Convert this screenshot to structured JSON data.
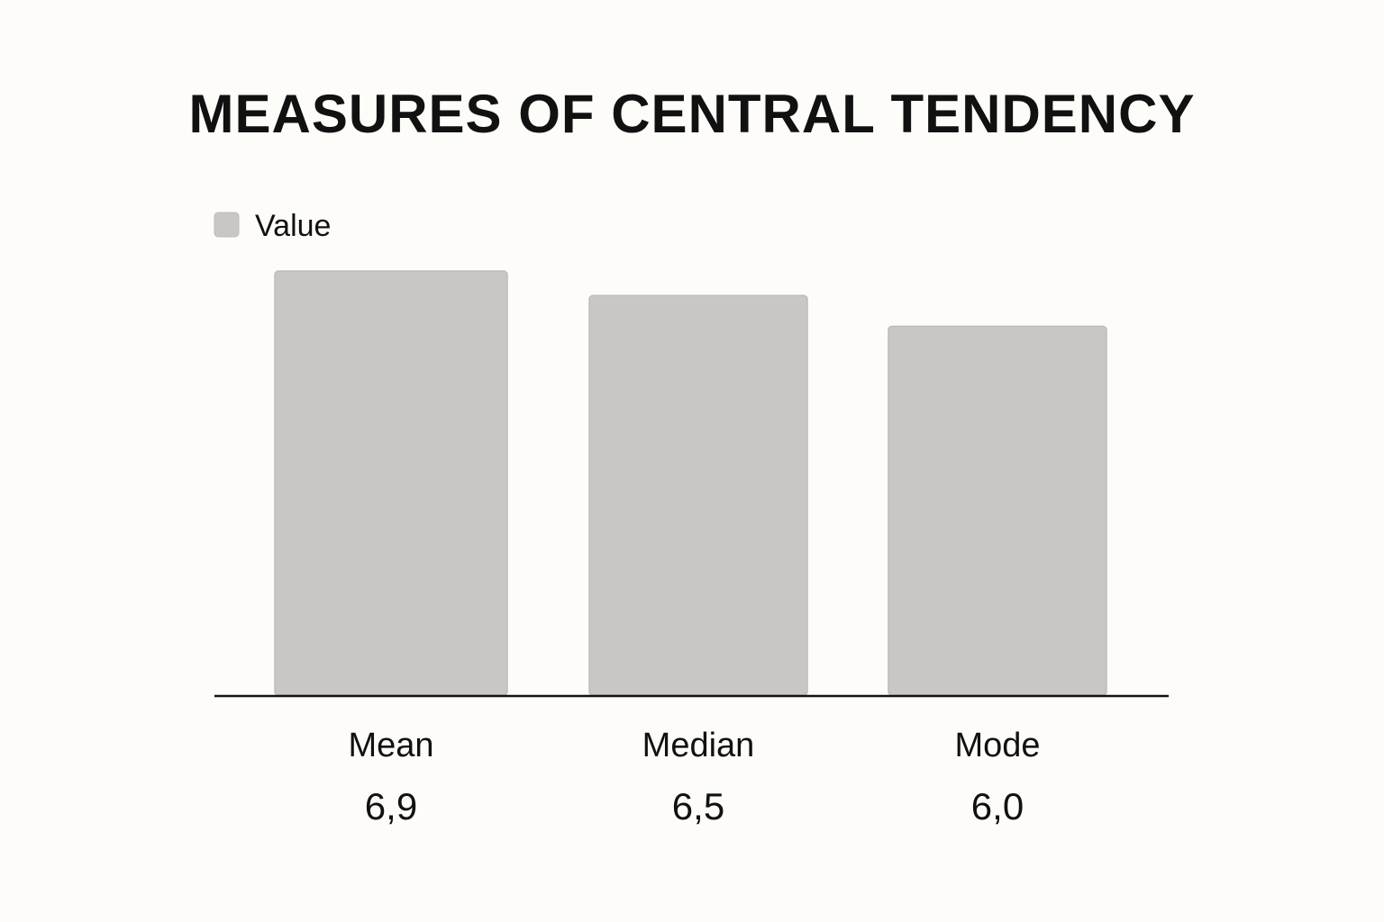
{
  "chart_data": {
    "type": "bar",
    "title": "MEASURES OF CENTRAL TENDENCY",
    "legend": {
      "position": "top-left",
      "entries": [
        "Value"
      ]
    },
    "categories": [
      "Mean",
      "Median",
      "Mode"
    ],
    "values": [
      6.9,
      6.5,
      6.0
    ],
    "value_labels": [
      "6,9",
      "6,5",
      "6,0"
    ],
    "series": [
      {
        "name": "Value",
        "values": [
          6.9,
          6.5,
          6.0
        ]
      }
    ],
    "colors": {
      "bar": "#c8c7c5",
      "bar_stroke": "#bdbcba",
      "axis": "#111111",
      "text": "#111111",
      "background": "#fdfcf8"
    },
    "xlabel": "",
    "ylabel": "",
    "grid": false,
    "ylim": [
      0,
      7.5
    ]
  }
}
